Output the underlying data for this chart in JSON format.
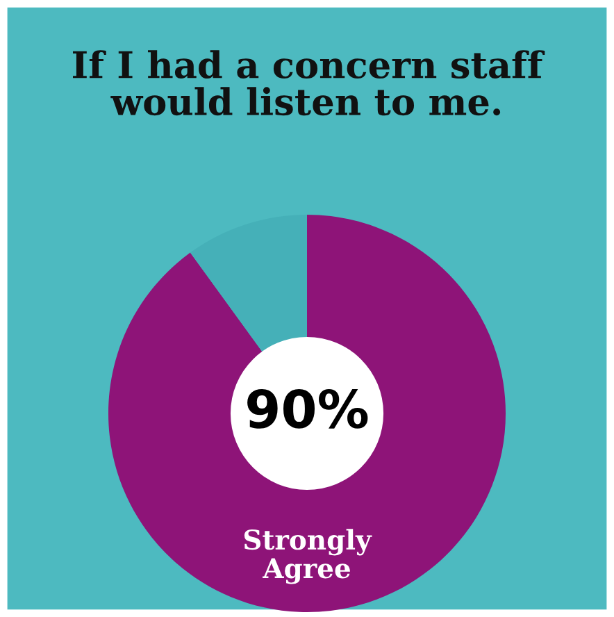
{
  "chart_data": {
    "type": "donut",
    "title": "If I had a concern staff\nwould listen to me.",
    "categories": [
      "Strongly\nAgree",
      null
    ],
    "values": [
      90,
      10
    ],
    "colors": [
      "#8e1478",
      "#45b0b8"
    ],
    "value_labels": [
      "90%",
      null
    ]
  }
}
